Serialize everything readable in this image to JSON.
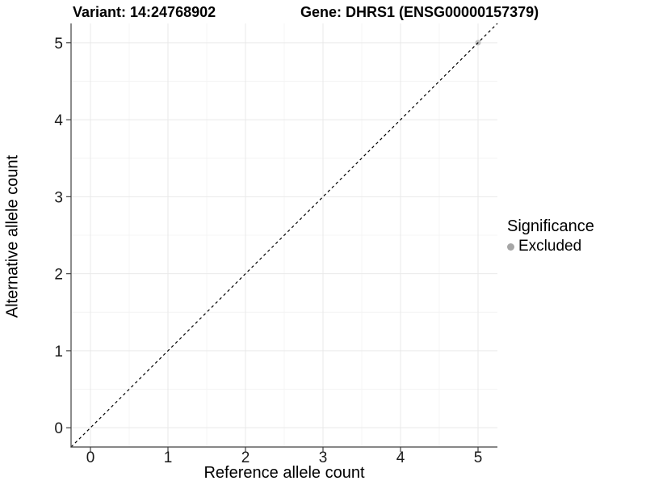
{
  "chart_data": {
    "type": "scatter",
    "titles": {
      "left": "Variant: 14:24768902",
      "right": "Gene: DHRS1 (ENSG00000157379)"
    },
    "xlabel": "Reference allele count",
    "ylabel": "Alternative allele count",
    "xlim": [
      -0.25,
      5.25
    ],
    "ylim": [
      -0.25,
      5.25
    ],
    "xticks": [
      0,
      1,
      2,
      3,
      4,
      5
    ],
    "yticks": [
      0,
      1,
      2,
      3,
      4,
      5
    ],
    "xminor": [
      0.5,
      1.5,
      2.5,
      3.5,
      4.5
    ],
    "yminor": [
      0.5,
      1.5,
      2.5,
      3.5,
      4.5
    ],
    "grid": "on",
    "points": [
      {
        "x": 5,
        "y": 5,
        "series": "Excluded"
      }
    ],
    "identity_line": {
      "style": "dashed",
      "slope": 1,
      "intercept": 0,
      "color": "#000000"
    },
    "legend": {
      "title": "Significance",
      "position": "right",
      "items": [
        {
          "label": "Excluded",
          "color": "#a6a6a6"
        }
      ]
    },
    "colors": {
      "point_excluded": "#c2c2c2",
      "grid_major": "#e9e9e9",
      "grid_minor": "#f4f4f4",
      "axis_line": "#404040",
      "tick_text": "#1a1a1a",
      "background": "#ffffff"
    }
  }
}
